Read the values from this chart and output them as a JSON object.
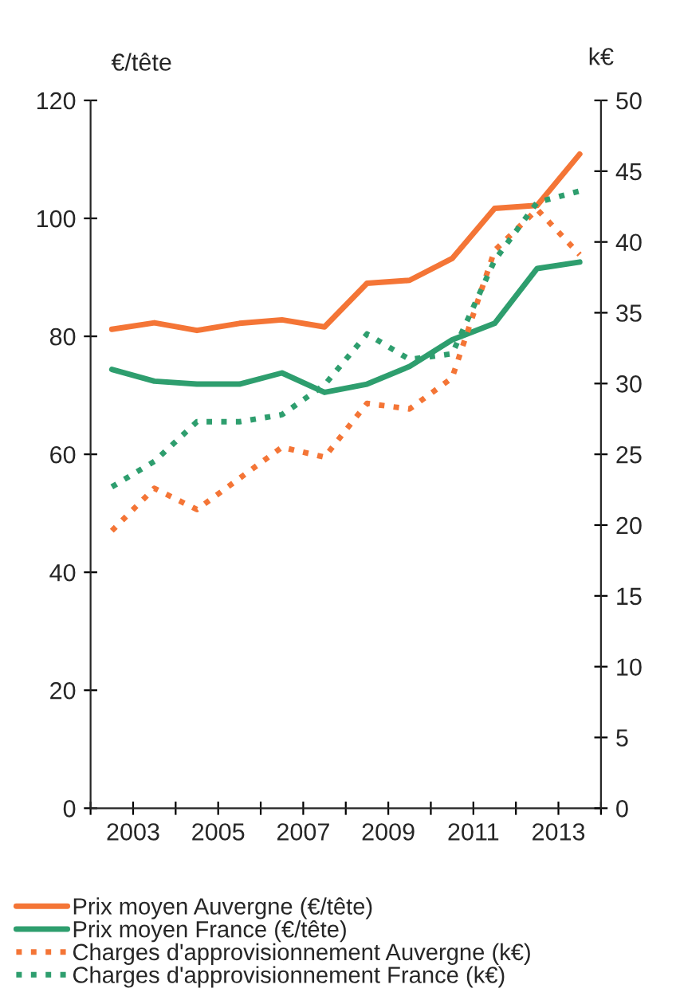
{
  "chart_data": {
    "type": "line",
    "ylabel": "€/tête",
    "y2label": "k€",
    "xlim": [
      2002,
      2014
    ],
    "xticks": [
      {
        "value": 2002,
        "label": null
      },
      2003,
      {
        "value": 2004,
        "label": null
      },
      2005,
      {
        "value": 2006,
        "label": null
      },
      2007,
      {
        "value": 2008,
        "label": null
      },
      2009,
      {
        "value": 2010,
        "label": null
      },
      2011,
      {
        "value": 2012,
        "label": null
      },
      2013,
      {
        "value": 2014,
        "label": null
      }
    ],
    "x": [
      2002.5,
      2003.5,
      2004.5,
      2005.5,
      2006.5,
      2007.5,
      2008.5,
      2009.5,
      2010.5,
      2011.5,
      2012.5,
      2013.5
    ],
    "ylim": [
      0,
      120
    ],
    "yticks": [
      0,
      20,
      40,
      60,
      80,
      100,
      120
    ],
    "y2lim": [
      0,
      50
    ],
    "y2ticks": [
      0,
      5,
      10,
      15,
      20,
      25,
      30,
      35,
      40,
      45,
      50
    ],
    "grid": false,
    "legend": "bottom",
    "marker": "none",
    "series": [
      {
        "name": "Prix moyen Auvergne (€/tête)",
        "color": "#f47536",
        "line_style": "solid",
        "values": [
          81.2,
          82.3,
          81.0,
          82.2,
          82.8,
          81.6,
          89.0,
          89.5,
          93.2,
          101.7,
          102.2,
          110.9
        ]
      },
      {
        "name": "Prix moyen France (€/tête)",
        "color": "#2e9e6e",
        "line_style": "solid",
        "values": [
          74.4,
          72.4,
          71.9,
          71.9,
          73.8,
          70.5,
          71.9,
          74.9,
          79.4,
          82.2,
          91.5,
          92.6
        ]
      },
      {
        "name": "Charges d'approvisionnement Auvergne (k€)",
        "color": "#f47536",
        "line_style": "dotted",
        "axis": "y2",
        "values": [
          19.6,
          22.6,
          21.1,
          23.3,
          25.5,
          24.8,
          28.6,
          28.2,
          30.4,
          39.4,
          42.3,
          39.1
        ]
      },
      {
        "name": "Charges d'approvisionnement France (k€)",
        "color": "#2e9e6e",
        "line_style": "dotted",
        "axis": "y2",
        "values": [
          22.7,
          24.5,
          27.3,
          27.3,
          27.8,
          29.9,
          33.5,
          31.7,
          32.1,
          38.7,
          42.8,
          43.6
        ]
      }
    ]
  }
}
